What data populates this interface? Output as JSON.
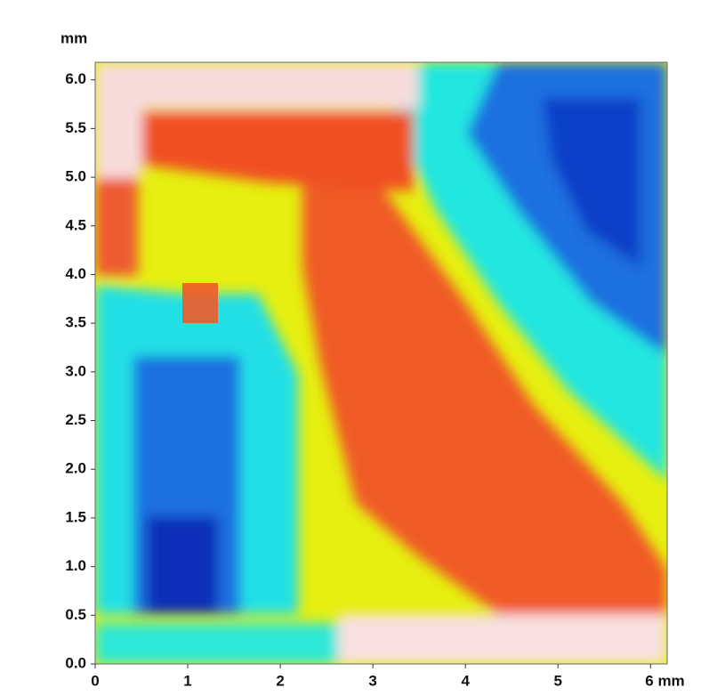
{
  "chart_data": {
    "type": "image",
    "y_label": "mm",
    "xlim": [
      0,
      6.18
    ],
    "ylim": [
      0,
      6.18
    ],
    "xticks": [
      0,
      1,
      2,
      3,
      4,
      5,
      {
        "value": 6,
        "label": "6 mm"
      }
    ],
    "yticks": [
      {
        "value": 0,
        "label": "0.0"
      },
      0.5,
      {
        "value": 1,
        "label": "1.0"
      },
      1.5,
      {
        "value": 2,
        "label": "2.0"
      },
      2.5,
      {
        "value": 3,
        "label": "3.0"
      },
      3.5,
      {
        "value": 4,
        "label": "4.0"
      },
      4.5,
      {
        "value": 5,
        "label": "5.0"
      },
      5.5,
      {
        "value": 6,
        "label": "6.0"
      }
    ]
  }
}
